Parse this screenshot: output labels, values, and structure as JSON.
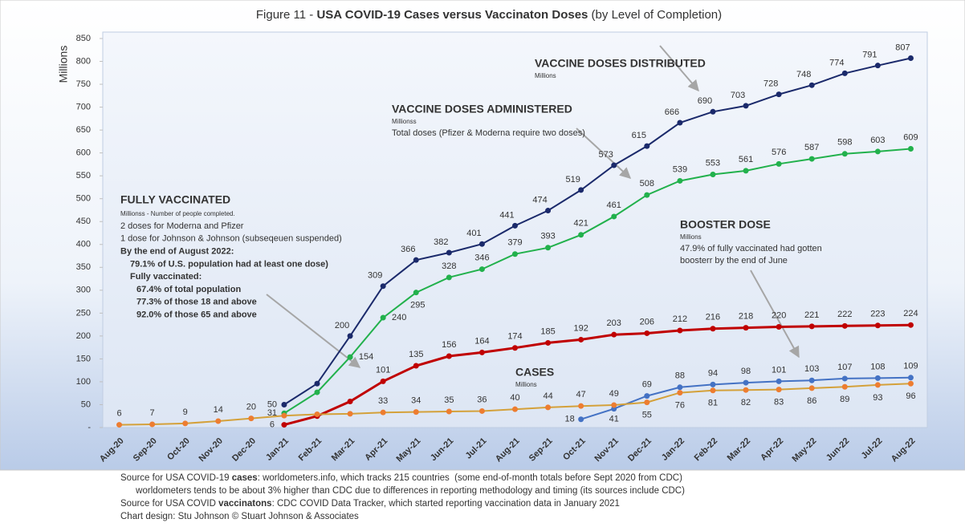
{
  "chart_data": {
    "type": "line",
    "title": [
      "Figure 11 - ",
      "USA COVID-19 Cases versus Vaccinaton Doses",
      " (by Level of Completion)"
    ],
    "y_label": "Millions",
    "categories": [
      "Aug-20",
      "Sep-20",
      "Oct-20",
      "Nov-20",
      "Dec-20",
      "Jan-21",
      "Feb-21",
      "Mar-21",
      "Apr-21",
      "May-21",
      "Jun-21",
      "Jul-21",
      "Aug-21",
      "Sep-21",
      "Oct-21",
      "Nov-21",
      "Dec-21",
      "Jan-22",
      "Feb-22",
      "Mar-22",
      "Apr-22",
      "May-22",
      "Jun-22",
      "Jul-22",
      "Aug-22"
    ],
    "ylim": [
      0,
      850
    ],
    "yticks": [
      {
        "value": 0,
        "label": "-"
      },
      50,
      100,
      150,
      200,
      250,
      300,
      350,
      400,
      450,
      500,
      550,
      600,
      650,
      700,
      750,
      800,
      850
    ],
    "grid": false,
    "series": [
      {
        "color": "#1b2a6b",
        "values": [
          null,
          null,
          null,
          null,
          null,
          50,
          96,
          200,
          309,
          366,
          382,
          401,
          441,
          474,
          519,
          573,
          615,
          666,
          690,
          703,
          728,
          748,
          774,
          791,
          807
        ],
        "value_labels": [
          null,
          null,
          null,
          null,
          null,
          "50",
          null,
          "200",
          "309",
          "366",
          "382",
          "401",
          "441",
          "474",
          "519",
          "573",
          "615",
          "666",
          "690",
          "703",
          "728",
          "748",
          "774",
          "791",
          "807"
        ]
      },
      {
        "color": "#22b14c",
        "values": [
          null,
          null,
          null,
          null,
          null,
          31,
          77,
          154,
          240,
          295,
          328,
          346,
          379,
          393,
          421,
          461,
          508,
          539,
          553,
          561,
          576,
          587,
          598,
          603,
          609
        ],
        "value_labels": [
          null,
          null,
          null,
          null,
          null,
          "31",
          null,
          "154",
          "240",
          "295",
          "328",
          "346",
          "379",
          "393",
          "421",
          "461",
          "508",
          "539",
          "553",
          "561",
          "576",
          "587",
          "598",
          "603",
          "609"
        ]
      },
      {
        "color": "#c00000",
        "values": [
          null,
          null,
          null,
          null,
          null,
          6,
          25,
          57,
          101,
          135,
          156,
          164,
          174,
          185,
          192,
          203,
          206,
          212,
          216,
          218,
          220,
          221,
          222,
          223,
          224
        ],
        "value_labels": [
          null,
          null,
          null,
          null,
          null,
          "6",
          null,
          null,
          "101",
          "135",
          "156",
          "164",
          "174",
          "185",
          "192",
          "203",
          "206",
          "212",
          "216",
          "218",
          "220",
          "221",
          "222",
          "223",
          "224"
        ]
      },
      {
        "color": "#4472c4",
        "values": [
          null,
          null,
          null,
          null,
          null,
          null,
          null,
          null,
          null,
          null,
          null,
          null,
          null,
          null,
          18,
          41,
          69,
          88,
          94,
          98,
          101,
          103,
          107,
          108,
          109
        ],
        "value_labels": [
          null,
          null,
          null,
          null,
          null,
          null,
          null,
          null,
          null,
          null,
          null,
          null,
          null,
          null,
          "18",
          "41",
          "69",
          "88",
          "94",
          "98",
          "101",
          "103",
          "107",
          "108",
          "109"
        ]
      },
      {
        "color": "#d4a13a",
        "values": [
          6,
          7,
          9,
          14,
          20,
          26,
          29,
          30,
          33,
          34,
          35,
          36,
          40,
          44,
          47,
          49,
          55,
          76,
          81,
          82,
          83,
          86,
          89,
          93,
          96
        ],
        "value_labels": [
          "6",
          "7",
          "9",
          "14",
          "20",
          null,
          null,
          null,
          "33",
          "34",
          "35",
          "36",
          "40",
          "44",
          "47",
          "49",
          "55",
          "76",
          "81",
          "82",
          "83",
          "86",
          "89",
          "93",
          "96"
        ]
      }
    ],
    "annotations": [
      {
        "heading": "VACCINE DOSES DISTRIBUTED",
        "sub": "Millions",
        "lines": []
      },
      {
        "heading": "VACCINE DOSES ADMINISTERED",
        "sub": "Millionss",
        "lines": [
          "Total doses (Pfizer & Moderna require two doses)"
        ]
      },
      {
        "heading": "FULLY VACCINATED",
        "sub": "Millionss - Number of people completed.",
        "lines": [
          "2 doses for Moderna and Pfizer",
          "1 dose for Johnson & Johnson (subseqeuen suspended)",
          "By the end of August 2022:",
          "79.1% of U.S. population had at least one dose)",
          "Fully vaccinated:",
          "67.4% of total population",
          "77.3% of those 18 and above",
          "92.0% of those 65 and above"
        ]
      },
      {
        "heading": "BOOSTER DOSE",
        "sub": "Millions",
        "lines": [
          "47.9% of fully vaccinated had gotten",
          "boosterr by the end of June"
        ]
      },
      {
        "heading": "CASES",
        "sub": "Millions",
        "lines": []
      }
    ],
    "footer": [
      [
        "Source for USA COVID-19 ",
        "cases",
        ": worldometers.info, which tracks 215 countries  (some end-of-month totals before Sept 2020 from CDC)"
      ],
      [
        "      worldometers tends to be about 3% higher than CDC due to differences in reporting methodology and timing (its sources include CDC)"
      ],
      [
        "Source for USA COVID ",
        "vaccinatons",
        ": CDC COVID Data Tracker, which started reporting vaccination data in January 2021"
      ],
      [
        "Chart design: Stu Johnson © Stuart Johnson & Associates"
      ]
    ]
  }
}
